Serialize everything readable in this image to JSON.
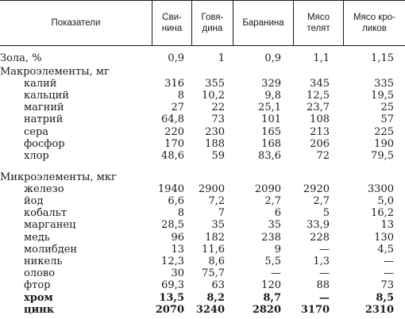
{
  "header": {
    "col0": "Показатели",
    "col1": "Сви-\nнина",
    "col2": "Говя-\nдина",
    "col3": "Баранина",
    "col4": "Мясо\nтелят",
    "col5": "Мясо кро-\nликов"
  },
  "rows": [
    {
      "label": "Зола, %",
      "values": [
        "0,9",
        "1",
        "0,9",
        "1,1",
        "1,15"
      ],
      "kind": "zola"
    },
    {
      "label": "Макроэлементы, мг",
      "values": [
        "",
        "",
        "",
        "",
        ""
      ],
      "kind": "section"
    },
    {
      "label": "калий",
      "values": [
        "316",
        "355",
        "329",
        "345",
        "335"
      ],
      "kind": "item"
    },
    {
      "label": "кальций",
      "values": [
        "8",
        "10,2",
        "9,8",
        "12,5",
        "19,5"
      ],
      "kind": "item"
    },
    {
      "label": "магний",
      "values": [
        "27",
        "22",
        "25,1",
        "23,7",
        "25"
      ],
      "kind": "item"
    },
    {
      "label": "натрий",
      "values": [
        "64,8",
        "73",
        "101",
        "108",
        "57"
      ],
      "kind": "item"
    },
    {
      "label": "сера",
      "values": [
        "220",
        "230",
        "165",
        "213",
        "225"
      ],
      "kind": "item"
    },
    {
      "label": "фосфор",
      "values": [
        "170",
        "188",
        "168",
        "206",
        "190"
      ],
      "kind": "item"
    },
    {
      "label": "хлор",
      "values": [
        "48,6",
        "59",
        "83,6",
        "72",
        "79,5"
      ],
      "kind": "item"
    },
    {
      "label": "Микроэлементы, мкг",
      "values": [
        "",
        "",
        "",
        "",
        ""
      ],
      "kind": "section"
    },
    {
      "label": "железо",
      "values": [
        "1940",
        "2900",
        "2090",
        "2920",
        "3300"
      ],
      "kind": "item"
    },
    {
      "label": "йод",
      "values": [
        "6,6",
        "7,2",
        "2,7",
        "2,7",
        "5,0"
      ],
      "kind": "item"
    },
    {
      "label": "кобальт",
      "values": [
        "8",
        "7",
        "6",
        "5",
        "16,2"
      ],
      "kind": "item"
    },
    {
      "label": "марганец",
      "values": [
        "28,5",
        "35",
        "35",
        "33,9",
        "13"
      ],
      "kind": "item"
    },
    {
      "label": "медь",
      "values": [
        "96",
        "182",
        "238",
        "228",
        "130"
      ],
      "kind": "item"
    },
    {
      "label": "молибден",
      "values": [
        "13",
        "11,6",
        "9",
        "—",
        "4,5"
      ],
      "kind": "item"
    },
    {
      "label": "никель",
      "values": [
        "12,3",
        "8,6",
        "5,5",
        "1,3",
        "—"
      ],
      "kind": "item"
    },
    {
      "label": "олово",
      "values": [
        "30",
        "75,7",
        "—",
        "—",
        "—"
      ],
      "kind": "item"
    },
    {
      "label": "фтор",
      "values": [
        "69,3",
        "63",
        "120",
        "88",
        "73"
      ],
      "kind": "item"
    },
    {
      "label": "хром",
      "values": [
        "13,5",
        "8,2",
        "8,7",
        "—",
        "8,5"
      ],
      "kind": "item",
      "bold": true
    },
    {
      "label": "цинк",
      "values": [
        "2070",
        "3240",
        "2820",
        "3170",
        "2310"
      ],
      "kind": "item",
      "bold": true
    }
  ]
}
